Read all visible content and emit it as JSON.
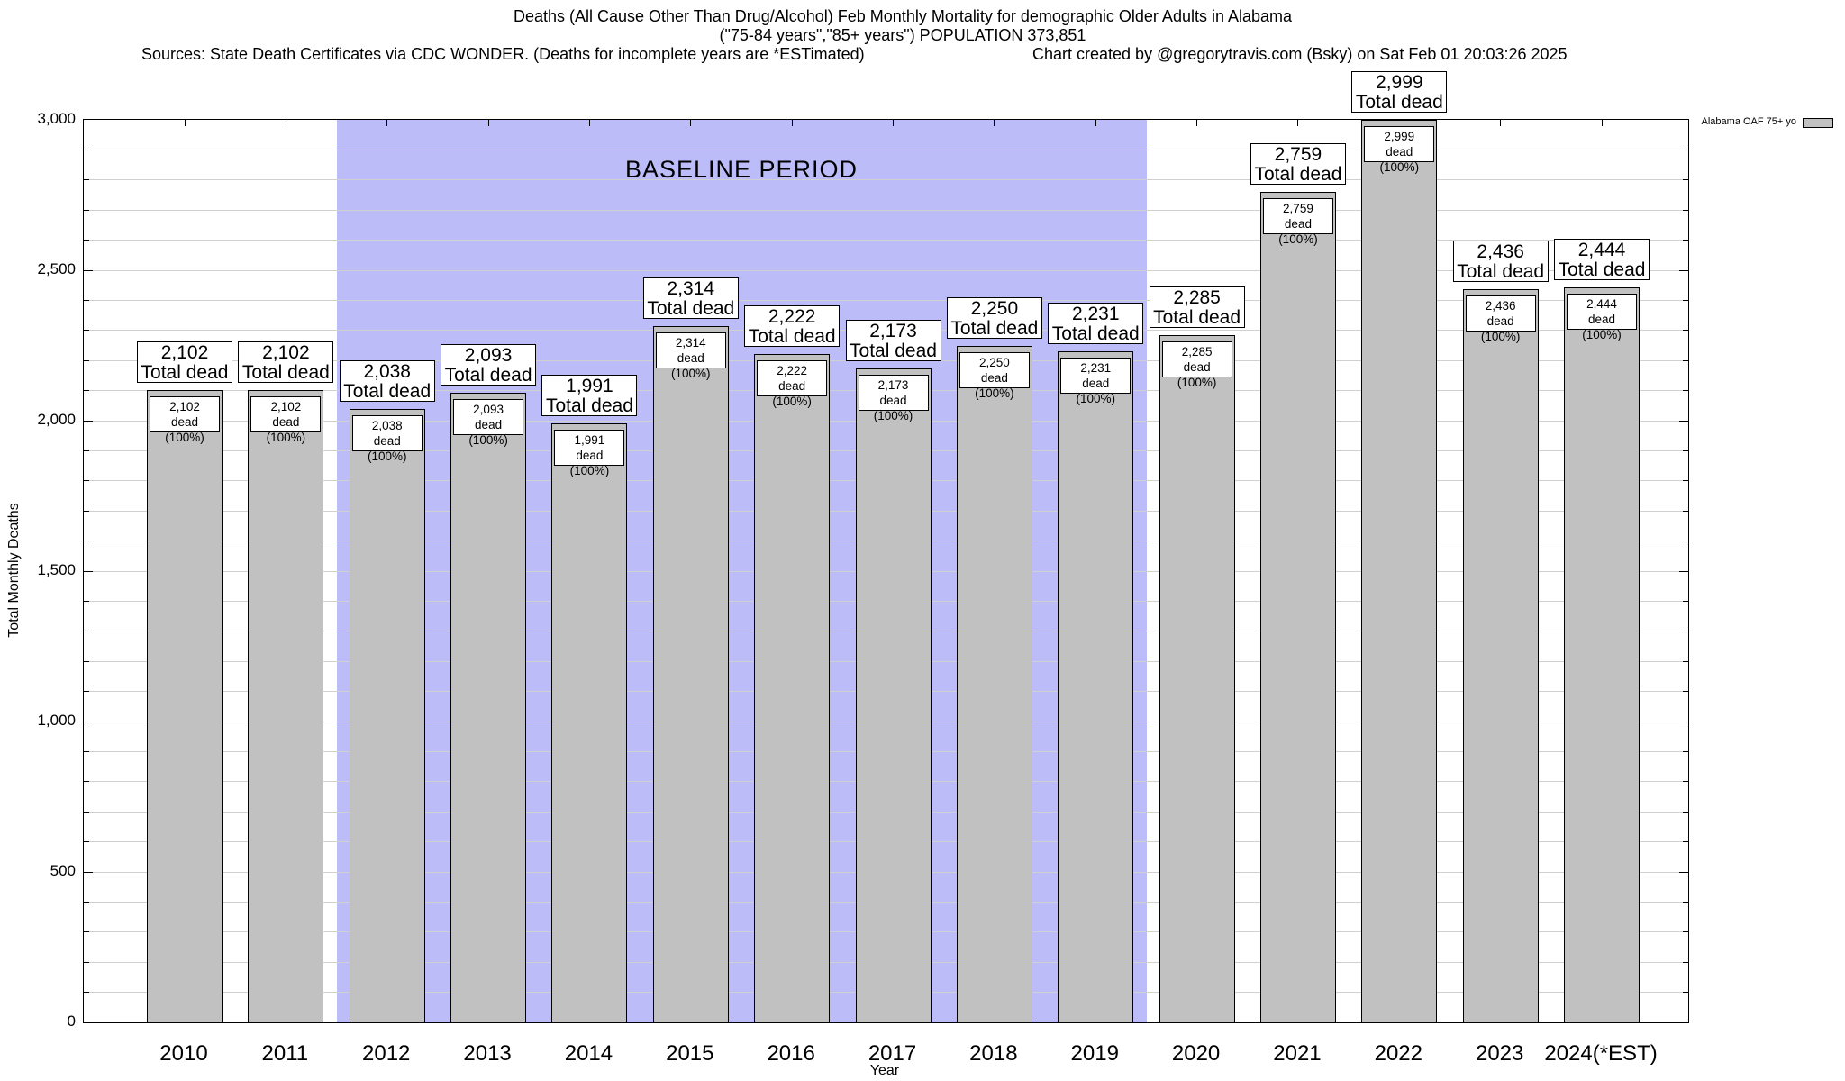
{
  "header": {
    "title_line1": "Deaths (All Cause Other Than Drug/Alcohol) Feb Monthly Mortality for demographic Older Adults in Alabama",
    "title_line2": "(\"75-84 years\",\"85+ years\") POPULATION 373,851",
    "sources_left": "Sources: State Death Certificates via CDC WONDER. (Deaths for incomplete years are *ESTimated)",
    "credit_right": "Chart created by @gregorytravis.com (Bsky) on Sat Feb 01 20:03:26 2025"
  },
  "legend": {
    "label": "Alabama OAF 75+ yo",
    "swatch_color": "#c1c1c1"
  },
  "chart_data": {
    "type": "bar",
    "title": "Deaths (All Cause Other Than Drug/Alcohol) Feb Monthly Mortality for demographic Older Adults in Alabama",
    "subtitle": "(\"75-84 years\",\"85+ years\") POPULATION 373,851",
    "series_name": "Alabama OAF 75+ yo",
    "categories": [
      "2010",
      "2011",
      "2012",
      "2013",
      "2014",
      "2015",
      "2016",
      "2017",
      "2018",
      "2019",
      "2020",
      "2021",
      "2022",
      "2023",
      "2024(*EST)"
    ],
    "values": [
      2102,
      2102,
      2038,
      2093,
      1991,
      2314,
      2222,
      2173,
      2250,
      2231,
      2285,
      2759,
      2999,
      2436,
      2444
    ],
    "values_formatted": [
      "2,102",
      "2,102",
      "2,038",
      "2,093",
      "1,991",
      "2,314",
      "2,222",
      "2,173",
      "2,250",
      "2,231",
      "2,285",
      "2,759",
      "2,999",
      "2,436",
      "2,444"
    ],
    "bar_label_total_suffix": "Total dead",
    "bar_label_inner_suffix": "dead (100%)",
    "xlabel": "Year",
    "ylabel": "Total Monthly Deaths",
    "ylim": [
      0,
      3000
    ],
    "ytick_step": 500,
    "minor_grid_step": 100,
    "ytick_labels": [
      "0",
      "500",
      "1,000",
      "1,500",
      "2,000",
      "2,500",
      "3,000"
    ],
    "grid": true,
    "legend_position": "top-right",
    "annotations": {
      "baseline_label": "BASELINE PERIOD",
      "baseline_start_year": 2012,
      "baseline_end_year": 2019
    },
    "colors": {
      "bar_fill": "#c1c1c1",
      "bar_border": "#000000",
      "baseline_fill": "#bcbcf8",
      "grid_line": "#d0d0d0",
      "label_box_fill": "#ffffff"
    }
  }
}
